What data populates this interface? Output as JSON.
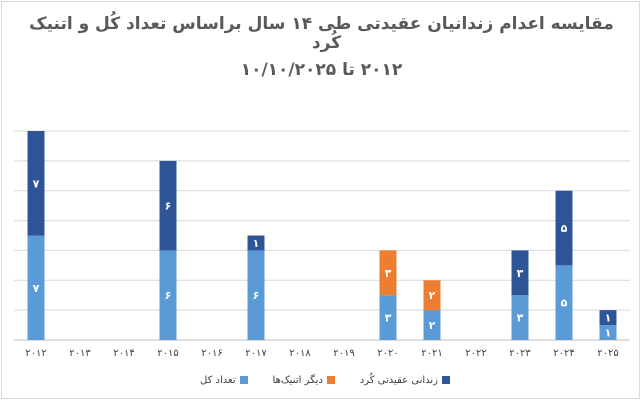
{
  "chart_data": {
    "type": "bar",
    "stacked": true,
    "title_line1": "مقایسه اعدام زندانیان عقیدتی طی ۱۴ سال براساس تعداد کُل و اتنیک",
    "title_line2": "کُرد",
    "title_line3": "۲۰۱۲ تا ۱۰/۱۰/۲۰۲۵",
    "categories": [
      "۲۰۱۲",
      "۲۰۱۳",
      "۲۰۱۴",
      "۲۰۱۵",
      "۲۰۱۶",
      "۲۰۱۷",
      "۲۰۱۸",
      "۲۰۱۹",
      "۲۰۲۰",
      "۲۰۲۱",
      "۲۰۲۲",
      "۲۰۲۳",
      "۲۰۲۴",
      "۲۰۲۵"
    ],
    "series": [
      {
        "name": "تعداد کل",
        "color": "#5b9bd5",
        "values": [
          7,
          0,
          0,
          6,
          0,
          6,
          0,
          0,
          3,
          2,
          0,
          3,
          5,
          1
        ]
      },
      {
        "name": "دیگر اتنیک‌ها",
        "color": "#ed7d31",
        "values": [
          0,
          0,
          0,
          0,
          0,
          0,
          0,
          0,
          3,
          2,
          0,
          0,
          0,
          0
        ]
      },
      {
        "name": "زندانی عقیدتی کُرد",
        "color": "#2f5597",
        "values": [
          7,
          0,
          0,
          6,
          0,
          1,
          0,
          0,
          0,
          0,
          0,
          3,
          5,
          1
        ]
      }
    ],
    "value_labels": [
      [
        "۷",
        "",
        "",
        "۶",
        "",
        "۶",
        "",
        "",
        "۳",
        "۲",
        "",
        "۳",
        "۵",
        "۱"
      ],
      [
        "",
        "",
        "",
        "",
        "",
        "",
        "",
        "",
        "۳",
        "۲",
        "",
        "",
        "",
        ""
      ],
      [
        "۷",
        "",
        "",
        "۶",
        "",
        "۱",
        "",
        "",
        "",
        "",
        "",
        "۳",
        "۵",
        "۱"
      ]
    ],
    "ylim": [
      0,
      14
    ],
    "gridlines": true,
    "legend_position": "bottom"
  }
}
